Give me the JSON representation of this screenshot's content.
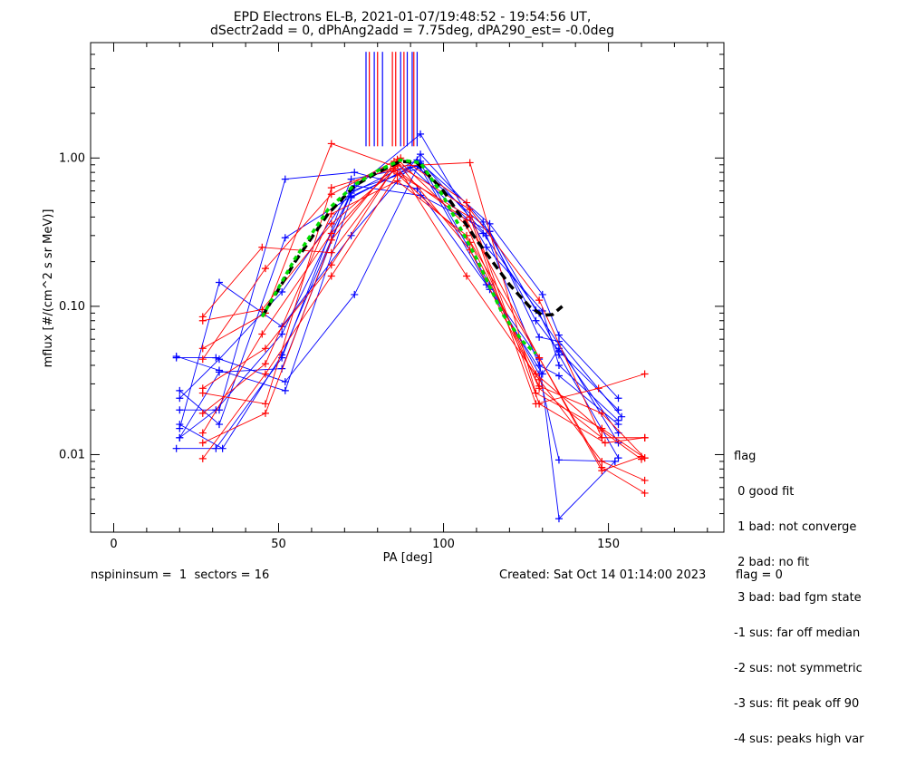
{
  "chart_data": {
    "type": "line",
    "title": "EPD Electrons EL-B, 2021-01-07/19:48:52 - 19:54:56 UT,",
    "subtitle": "dSectr2add = 0, dPhAng2add = 7.75deg, dPA290_est=  -0.0deg",
    "xlabel": "PA [deg]",
    "ylabel": "mflux [#/(cm^2 s sr MeV)]",
    "xlim": [
      -7,
      185
    ],
    "ylim": [
      0.003,
      6.0
    ],
    "yscale": "log",
    "x_ticks": [
      0,
      50,
      100,
      150
    ],
    "x_tick_labels": [
      "0",
      "50",
      "100",
      "150"
    ],
    "y_ticks": [
      0.01,
      0.1,
      1.0
    ],
    "y_tick_labels": [
      "0.01",
      "0.10",
      "1.00"
    ],
    "grid": false,
    "colors": {
      "blue": "#0000ff",
      "red": "#ff0000",
      "green": "#00dd00",
      "black": "#000000"
    },
    "peak_markers": {
      "blue_x": [
        76.5,
        79.0,
        81.5,
        87.0,
        89.0,
        90.5,
        92.0
      ],
      "red_x": [
        77.5,
        80.0,
        84.5,
        85.5,
        88.0,
        91.0
      ],
      "y_range": [
        1.2,
        5.2
      ]
    },
    "series": [
      {
        "color": "blue",
        "x": [
          19,
          32,
          52,
          72,
          90,
          112,
          129,
          135,
          153
        ],
        "y": [
          0.046,
          0.037,
          0.027,
          0.54,
          0.87,
          0.31,
          0.09,
          0.047,
          0.0095
        ]
      },
      {
        "color": "blue",
        "x": [
          20,
          33,
          51,
          72,
          92,
          114,
          130,
          135,
          153
        ],
        "y": [
          0.016,
          0.011,
          0.047,
          0.58,
          0.97,
          0.36,
          0.12,
          0.064,
          0.024
        ]
      },
      {
        "color": "blue",
        "x": [
          20,
          32,
          51,
          72,
          93,
          113,
          130,
          135,
          153
        ],
        "y": [
          0.013,
          0.036,
          0.038,
          0.6,
          1.45,
          0.25,
          0.093,
          0.04,
          0.017
        ]
      },
      {
        "color": "blue",
        "x": [
          20,
          32,
          52,
          72,
          93,
          114,
          129,
          135,
          152
        ],
        "y": [
          0.027,
          0.016,
          0.29,
          0.55,
          0.92,
          0.14,
          0.035,
          0.0092,
          0.009
        ]
      },
      {
        "color": "blue",
        "x": [
          20,
          32,
          51,
          72,
          93,
          114,
          129,
          135,
          152
        ],
        "y": [
          0.024,
          0.044,
          0.125,
          0.6,
          0.86,
          0.13,
          0.044,
          0.0037,
          0.009
        ]
      },
      {
        "color": "blue",
        "x": [
          19,
          31,
          51,
          72,
          92,
          114,
          129,
          135,
          154
        ],
        "y": [
          0.011,
          0.011,
          0.045,
          0.72,
          0.88,
          0.32,
          0.062,
          0.058,
          0.018
        ]
      },
      {
        "color": "blue",
        "x": [
          19,
          31,
          52,
          73,
          93,
          113,
          129,
          135,
          153
        ],
        "y": [
          0.045,
          0.045,
          0.031,
          0.12,
          0.95,
          0.3,
          0.04,
          0.034,
          0.016
        ]
      },
      {
        "color": "blue",
        "x": [
          20,
          32,
          51,
          72,
          93,
          112,
          128,
          135,
          153
        ],
        "y": [
          0.015,
          0.145,
          0.073,
          0.3,
          1.06,
          0.37,
          0.08,
          0.05,
          0.02
        ]
      },
      {
        "color": "blue",
        "x": [
          20,
          32,
          52,
          73,
          92,
          113,
          130,
          135,
          153
        ],
        "y": [
          0.02,
          0.02,
          0.72,
          0.8,
          0.62,
          0.14,
          0.035,
          0.052,
          0.014
        ]
      },
      {
        "color": "blue",
        "x": [
          20,
          31,
          51,
          73,
          93,
          114,
          128,
          135,
          153
        ],
        "y": [
          0.013,
          0.02,
          0.065,
          0.65,
          0.56,
          0.32,
          0.094,
          0.055,
          0.012
        ]
      },
      {
        "color": "red",
        "x": [
          27,
          46,
          66,
          85,
          108,
          128,
          148,
          161
        ],
        "y": [
          0.052,
          0.09,
          1.25,
          0.88,
          0.93,
          0.026,
          0.015,
          0.0095
        ]
      },
      {
        "color": "red",
        "x": [
          27,
          46,
          66,
          85,
          107,
          129,
          148,
          161
        ],
        "y": [
          0.044,
          0.18,
          0.57,
          0.95,
          0.16,
          0.032,
          0.009,
          0.0067
        ]
      },
      {
        "color": "red",
        "x": [
          27,
          45,
          66,
          86,
          108,
          129,
          148,
          161
        ],
        "y": [
          0.085,
          0.25,
          0.23,
          0.9,
          0.45,
          0.11,
          0.013,
          0.013
        ]
      },
      {
        "color": "red",
        "x": [
          27,
          46,
          66,
          85,
          107,
          129,
          148,
          161
        ],
        "y": [
          0.026,
          0.022,
          0.63,
          0.85,
          0.38,
          0.045,
          0.0082,
          0.0055
        ]
      },
      {
        "color": "red",
        "x": [
          27,
          46,
          66,
          86,
          108,
          128,
          147,
          161
        ],
        "y": [
          0.0094,
          0.035,
          0.16,
          0.78,
          0.4,
          0.022,
          0.028,
          0.035
        ]
      },
      {
        "color": "red",
        "x": [
          27,
          46,
          66,
          86,
          107,
          129,
          148,
          161
        ],
        "y": [
          0.012,
          0.019,
          0.28,
          0.98,
          0.35,
          0.028,
          0.013,
          0.013
        ]
      },
      {
        "color": "red",
        "x": [
          27,
          45,
          66,
          85,
          108,
          128,
          148,
          160
        ],
        "y": [
          0.08,
          0.095,
          0.36,
          0.82,
          0.27,
          0.035,
          0.0145,
          0.0093
        ]
      },
      {
        "color": "red",
        "x": [
          27,
          46,
          66,
          87,
          107,
          129,
          149,
          161
        ],
        "y": [
          0.028,
          0.052,
          0.19,
          1.0,
          0.5,
          0.022,
          0.012,
          0.013
        ]
      },
      {
        "color": "red",
        "x": [
          27,
          46,
          66,
          86,
          107,
          129,
          148,
          160
        ],
        "y": [
          0.019,
          0.041,
          0.42,
          0.7,
          0.3,
          0.045,
          0.0078,
          0.0097
        ]
      },
      {
        "color": "red",
        "x": [
          27,
          45,
          66,
          86,
          108,
          129,
          148,
          161
        ],
        "y": [
          0.014,
          0.065,
          0.31,
          0.93,
          0.24,
          0.029,
          0.019,
          0.0095
        ]
      }
    ],
    "fit_curves": [
      {
        "color": "black",
        "style": "dashed",
        "x": [
          45,
          55,
          65,
          73,
          80,
          87,
          92,
          100,
          110,
          120,
          126,
          130,
          133,
          136
        ],
        "y": [
          0.085,
          0.2,
          0.42,
          0.65,
          0.8,
          0.95,
          0.93,
          0.6,
          0.28,
          0.14,
          0.1,
          0.087,
          0.088,
          0.1
        ]
      },
      {
        "color": "green",
        "style": "dotted",
        "x": [
          45,
          55,
          65,
          73,
          80,
          87,
          93,
          100,
          110,
          118,
          124,
          128
        ],
        "y": [
          0.085,
          0.21,
          0.45,
          0.66,
          0.82,
          0.97,
          0.93,
          0.55,
          0.21,
          0.088,
          0.058,
          0.048
        ]
      }
    ]
  },
  "legend": {
    "header": "flag",
    "entries": [
      " 0 good fit",
      " 1 bad: not converge",
      " 2 bad: no fit",
      " 3 bad: bad fgm state",
      "-1 sus: far off median",
      "-2 sus: not symmetric",
      "-3 sus: fit peak off 90",
      "-4 sus: peaks high var"
    ]
  },
  "footer": {
    "left": "nspininsum =  1  sectors = 16",
    "created": "Created: Sat Oct 14 01:14:00 2023",
    "flag": "flag = 0"
  }
}
